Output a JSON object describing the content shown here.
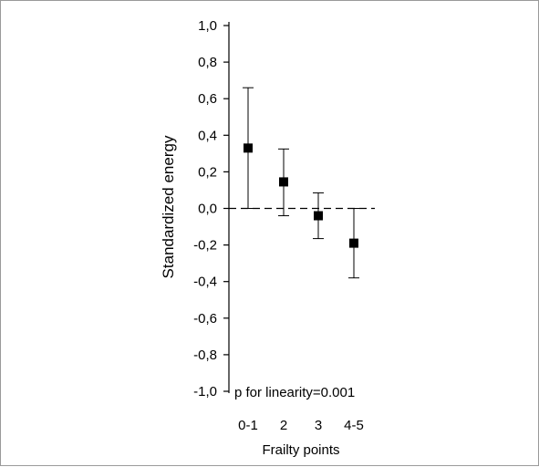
{
  "chart_data": {
    "type": "scatter",
    "xlabel": "Frailty points",
    "ylabel": "Standardized energy",
    "categories": [
      "0-1",
      "2",
      "3",
      "4-5"
    ],
    "series": [
      {
        "values": [
          0.33,
          0.145,
          -0.04,
          -0.19
        ],
        "ci_lower": [
          0.0,
          -0.04,
          -0.165,
          -0.38
        ],
        "ci_upper": [
          0.66,
          0.325,
          0.085,
          0.0
        ]
      }
    ],
    "ylim": [
      -1.0,
      1.0
    ],
    "yticks": [
      "1,0",
      "0,8",
      "0,6",
      "0,4",
      "0,2",
      "0,0",
      "-0,2",
      "-0,4",
      "-0,6",
      "-0,8",
      "-1,0"
    ],
    "reference_line": {
      "y": 0.0,
      "style": "dashed"
    },
    "annotation": "p for linearity=0.001",
    "grid": false,
    "marker_color": "#000000"
  }
}
